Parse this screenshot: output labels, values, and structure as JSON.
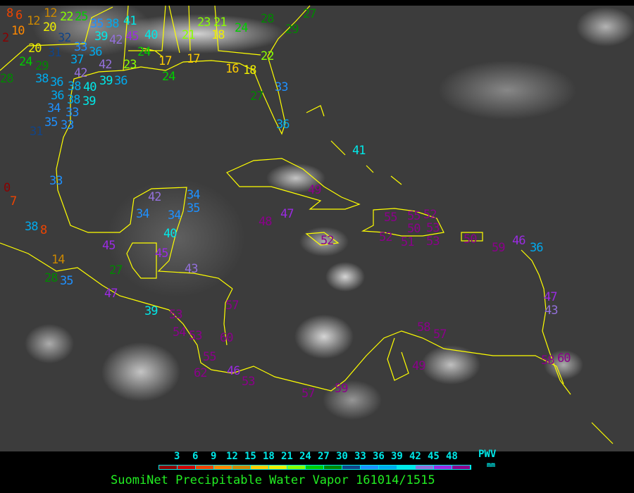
{
  "title": "SuomiNet Precipitable Water Vapor 161014/1515",
  "legend": {
    "unit_top": "PWV",
    "unit_bottom": "mm",
    "ticks": [
      "3",
      "6",
      "9",
      "12",
      "15",
      "18",
      "21",
      "24",
      "27",
      "30",
      "33",
      "36",
      "39",
      "42",
      "45",
      "48"
    ],
    "colors": [
      "#8b0000",
      "#cc0000",
      "#ee4400",
      "#ff8800",
      "#cc8800",
      "#ffcc00",
      "#eeee00",
      "#88ff00",
      "#00cc00",
      "#008800",
      "#114488",
      "#1e90ff",
      "#00aaee",
      "#00e8e8",
      "#9370db",
      "#9a2be2",
      "#8b008b"
    ]
  },
  "coastline_color": "#ffff00",
  "stations": [
    8,
    6,
    12,
    12,
    22,
    25,
    10,
    20,
    2,
    32,
    20,
    31,
    33,
    36,
    24,
    29,
    37,
    42,
    42,
    35,
    39,
    38,
    41,
    42,
    45,
    40,
    24,
    23,
    28,
    38,
    36,
    38,
    40,
    39,
    36,
    36,
    38,
    33,
    39,
    34,
    35,
    33,
    31,
    21,
    23,
    21,
    18,
    24,
    28,
    29,
    27,
    17,
    17,
    16,
    18,
    24,
    22,
    33,
    27,
    36,
    0,
    7,
    38,
    8,
    14,
    28,
    35,
    33,
    42,
    34,
    34,
    34,
    35,
    40,
    45,
    45,
    27,
    47,
    43,
    39,
    53,
    54,
    53,
    57,
    60,
    55,
    62,
    46,
    53,
    57,
    59,
    41,
    49,
    47,
    48,
    52,
    55,
    55,
    52,
    50,
    53,
    52,
    51,
    53,
    50,
    59,
    46,
    36,
    47,
    43,
    58,
    57,
    49,
    58,
    60
  ]
}
